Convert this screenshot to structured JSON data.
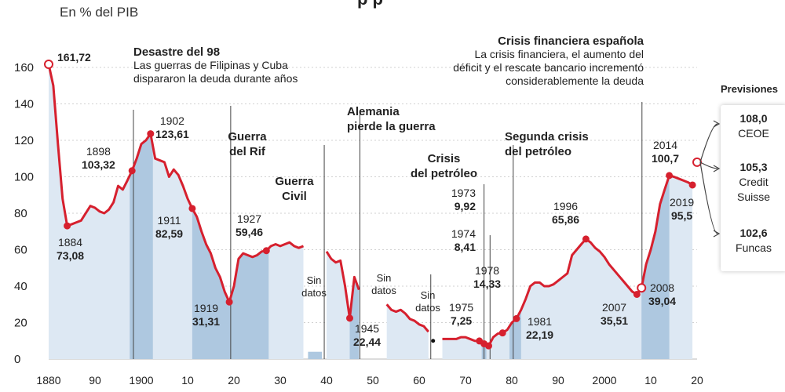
{
  "header": {
    "unit_label": "En % del PIB",
    "title_fragment": "p  p"
  },
  "chart_data": {
    "type": "area",
    "ylabel": "En % del PIB",
    "xlim": [
      1880,
      2020
    ],
    "ylim": [
      0,
      165
    ],
    "y_ticks": [
      0,
      20,
      40,
      60,
      80,
      100,
      120,
      140,
      160
    ],
    "x_ticks": [
      1880,
      1890,
      1900,
      1910,
      1920,
      1930,
      1940,
      1950,
      1960,
      1970,
      1980,
      1990,
      2000,
      2010,
      2020
    ],
    "x_tick_labels": [
      "1880",
      "90",
      "1900",
      "10",
      "20",
      "30",
      "40",
      "50",
      "60",
      "70",
      "80",
      "90",
      "2000",
      "10",
      "20"
    ],
    "grid": true,
    "series_segments": [
      [
        [
          1880,
          161.72
        ],
        [
          1881,
          150
        ],
        [
          1882,
          118
        ],
        [
          1883,
          88
        ],
        [
          1884,
          73.08
        ],
        [
          1885,
          74
        ],
        [
          1886,
          75
        ],
        [
          1887,
          76
        ],
        [
          1888,
          80
        ],
        [
          1889,
          84
        ],
        [
          1890,
          83
        ],
        [
          1891,
          81
        ],
        [
          1892,
          80
        ],
        [
          1893,
          82
        ],
        [
          1894,
          86
        ],
        [
          1895,
          95
        ],
        [
          1896,
          93
        ],
        [
          1897,
          98
        ],
        [
          1898,
          103.32
        ],
        [
          1899,
          110
        ],
        [
          1900,
          118
        ],
        [
          1901,
          120
        ],
        [
          1902,
          123.61
        ],
        [
          1903,
          110
        ],
        [
          1904,
          109
        ],
        [
          1905,
          108
        ],
        [
          1906,
          100
        ],
        [
          1907,
          104
        ],
        [
          1908,
          101
        ],
        [
          1909,
          95
        ],
        [
          1910,
          88
        ],
        [
          1911,
          82.59
        ],
        [
          1912,
          78
        ],
        [
          1913,
          70
        ],
        [
          1914,
          63
        ],
        [
          1915,
          58
        ],
        [
          1916,
          50
        ],
        [
          1917,
          45
        ],
        [
          1918,
          37
        ],
        [
          1919,
          31.31
        ],
        [
          1920,
          40
        ],
        [
          1921,
          55
        ],
        [
          1922,
          58
        ],
        [
          1923,
          57
        ],
        [
          1924,
          56
        ],
        [
          1925,
          57
        ],
        [
          1926,
          59
        ],
        [
          1927,
          59.46
        ],
        [
          1928,
          62
        ],
        [
          1929,
          63
        ],
        [
          1930,
          62
        ],
        [
          1931,
          63
        ],
        [
          1932,
          64
        ],
        [
          1933,
          62
        ],
        [
          1934,
          61
        ],
        [
          1935,
          62
        ]
      ],
      [
        [
          1940,
          59
        ],
        [
          1941,
          55
        ],
        [
          1942,
          53
        ],
        [
          1943,
          54
        ],
        [
          1944,
          40
        ],
        [
          1945,
          22.44
        ],
        [
          1946,
          45
        ],
        [
          1947,
          38
        ]
      ],
      [
        [
          1953,
          30
        ],
        [
          1954,
          27
        ],
        [
          1955,
          26
        ],
        [
          1956,
          27
        ],
        [
          1957,
          25
        ],
        [
          1958,
          22
        ],
        [
          1959,
          21
        ],
        [
          1960,
          19
        ],
        [
          1961,
          18
        ],
        [
          1962,
          15
        ]
      ],
      [
        [
          1965,
          11
        ],
        [
          1966,
          11
        ],
        [
          1967,
          11
        ],
        [
          1968,
          11
        ],
        [
          1969,
          12
        ],
        [
          1970,
          12
        ],
        [
          1971,
          11
        ],
        [
          1972,
          10
        ],
        [
          1973,
          9.92
        ],
        [
          1974,
          8.41
        ],
        [
          1975,
          7.25
        ],
        [
          1976,
          12
        ],
        [
          1977,
          14
        ],
        [
          1978,
          14.33
        ],
        [
          1979,
          16
        ],
        [
          1980,
          20
        ],
        [
          1981,
          22.19
        ],
        [
          1982,
          27
        ],
        [
          1983,
          33
        ],
        [
          1984,
          40
        ],
        [
          1985,
          42
        ],
        [
          1986,
          42
        ],
        [
          1987,
          40
        ],
        [
          1988,
          40
        ],
        [
          1989,
          41
        ],
        [
          1990,
          43
        ],
        [
          1991,
          45
        ],
        [
          1992,
          47
        ],
        [
          1993,
          57
        ],
        [
          1994,
          60
        ],
        [
          1995,
          63
        ],
        [
          1996,
          65.86
        ],
        [
          1997,
          64
        ],
        [
          1998,
          61
        ],
        [
          1999,
          59
        ],
        [
          2000,
          56
        ],
        [
          2001,
          52
        ],
        [
          2002,
          49
        ],
        [
          2003,
          46
        ],
        [
          2004,
          43
        ],
        [
          2005,
          40
        ],
        [
          2006,
          37
        ],
        [
          2007,
          35.51
        ],
        [
          2008,
          39.04
        ],
        [
          2009,
          52
        ],
        [
          2010,
          60
        ],
        [
          2011,
          70
        ],
        [
          2012,
          85
        ],
        [
          2013,
          93
        ],
        [
          2014,
          100.7
        ],
        [
          2015,
          100
        ],
        [
          2016,
          99
        ],
        [
          2017,
          98
        ],
        [
          2018,
          97
        ],
        [
          2019,
          95.5
        ]
      ]
    ],
    "no_data_points": [
      [
        1963,
        10
      ]
    ],
    "shaded_periods": [
      [
        1897.5,
        1902.5
      ],
      [
        1911,
        1927.5
      ],
      [
        1936,
        1939
      ],
      [
        1945,
        1948
      ],
      [
        1973.5,
        1974.5
      ],
      [
        1979.5,
        1982
      ],
      [
        2008,
        2014
      ]
    ],
    "end_point": [
      2020,
      108
    ],
    "labels": [
      {
        "year": "1884",
        "value": "73,08"
      },
      {
        "year": "1898",
        "value": "103,32"
      },
      {
        "year": "1902",
        "value": "123,61"
      },
      {
        "year": "1911",
        "value": "82,59"
      },
      {
        "year": "1919",
        "value": "31,31"
      },
      {
        "year": "1927",
        "value": "59,46"
      },
      {
        "year": "1945",
        "value": "22,44"
      },
      {
        "year": "1973",
        "value": "9,92"
      },
      {
        "year": "1974",
        "value": "8,41"
      },
      {
        "year": "1975",
        "value": "7,25"
      },
      {
        "year": "1978",
        "value": "14,33"
      },
      {
        "year": "1981",
        "value": "22,19"
      },
      {
        "year": "1996",
        "value": "65,86"
      },
      {
        "year": "2007",
        "value": "35,51"
      },
      {
        "year": "2008",
        "value": "39,04"
      },
      {
        "year": "2014",
        "value": "100,7"
      },
      {
        "year": "2019",
        "value": "95,5"
      }
    ],
    "first_value_label": "161,72"
  },
  "annotations": {
    "desastre_title": "Desastre del 98",
    "desastre_line1": "Las guerras de Filipinas y Cuba",
    "desastre_line2": "dispararon la deuda durante años",
    "crisis_title": "Crisis financiera española",
    "crisis_line1": "La crisis financiera, el aumento del",
    "crisis_line2": "déficit y el rescate bancario incrementó",
    "crisis_line3": "considerablemente la deuda",
    "rif_line1": "Guerra",
    "rif_line2": "del Rif",
    "civil_line1": "Guerra",
    "civil_line2": "Civil",
    "alemania_line1": "Alemania",
    "alemania_line2": "pierde la guerra",
    "petroleo_line1": "Crisis",
    "petroleo_line2": "del petróleo",
    "petroleo2_line1": "Segunda crisis",
    "petroleo2_line2": "del petróleo",
    "sin": "Sin",
    "datos": "datos"
  },
  "forecasts": {
    "title": "Previsiones",
    "items": [
      {
        "value": "108,0",
        "source": "CEOE",
        "source2": ""
      },
      {
        "value": "105,3",
        "source": "Credit",
        "source2": "Suisse"
      },
      {
        "value": "102,6",
        "source": "Funcas",
        "source2": ""
      }
    ]
  },
  "colors": {
    "line": "#d6202e",
    "fill": "#dde8f3",
    "shade": "#aec8e0",
    "grid": "#d0d0d0"
  }
}
